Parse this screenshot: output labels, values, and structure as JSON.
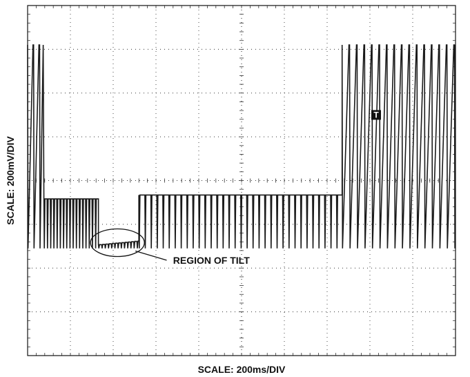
{
  "chart_data": {
    "type": "line",
    "xlabel": "SCALE: 200ms/DIV",
    "ylabel": "SCALE: 200mV/DIV",
    "x_divisions": 10,
    "y_divisions": 8,
    "grid": true,
    "grid_style": "dotted",
    "trace_color": "#1a1a1a",
    "trigger_marker": "T",
    "annotation": "REGION OF TILT",
    "waveform": {
      "segments": [
        {
          "mode": "full",
          "x_start": 0.0,
          "x_end": 0.38,
          "top": 3.1,
          "bottom": -1.55,
          "period": 0.14
        },
        {
          "mode": "clamp",
          "x_start": 0.38,
          "x_end": 2.6,
          "top": -0.42,
          "bottom": -1.55,
          "period": 0.075
        },
        {
          "mode": "clamp",
          "x_start": 2.6,
          "x_end": 7.35,
          "top": -0.33,
          "bottom": -1.55,
          "period": 0.14
        },
        {
          "mode": "full",
          "x_start": 7.35,
          "x_end": 10.0,
          "top": 3.1,
          "bottom": -1.55,
          "period": 0.175
        }
      ],
      "tilt_region": {
        "x_start": 1.6,
        "x_end": 2.6,
        "y_start": -1.47,
        "y_end": -1.38
      }
    }
  }
}
